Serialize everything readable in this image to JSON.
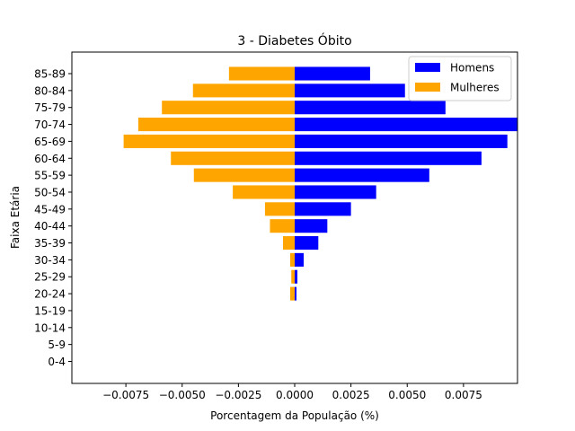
{
  "chart_data": {
    "type": "bar",
    "orientation": "horizontal",
    "title": "3 - Diabetes Óbito",
    "xlabel": "Porcentagem da População (%)",
    "ylabel": "Faixa Etária",
    "xlim": [
      -0.0099,
      0.0099
    ],
    "x_ticks": [
      -0.0075,
      -0.005,
      -0.0025,
      0.0,
      0.0025,
      0.005,
      0.0075
    ],
    "x_tick_labels": [
      "−0.0075",
      "−0.0050",
      "−0.0025",
      "0.0000",
      "0.0025",
      "0.0050",
      "0.0075"
    ],
    "categories": [
      "0-4",
      "5-9",
      "10-14",
      "15-19",
      "20-24",
      "25-29",
      "30-34",
      "35-39",
      "40-44",
      "45-49",
      "50-54",
      "55-59",
      "60-64",
      "65-69",
      "70-74",
      "75-79",
      "80-84",
      "85-89"
    ],
    "series": [
      {
        "name": "Homens",
        "color": "#0000ff",
        "values": [
          0.0,
          0.0,
          0.0,
          0.0,
          8e-05,
          0.00012,
          0.0004,
          0.00105,
          0.00145,
          0.0025,
          0.00362,
          0.00598,
          0.0083,
          0.00945,
          0.0099,
          0.0067,
          0.0049,
          0.00335
        ]
      },
      {
        "name": "Mulheres",
        "color": "#ffa500",
        "values": [
          0.0,
          0.0,
          0.0,
          0.0,
          -0.0002,
          -0.00015,
          -0.0002,
          -0.00052,
          -0.0011,
          -0.00132,
          -0.00275,
          -0.00448,
          -0.0055,
          -0.0076,
          -0.00695,
          -0.0059,
          -0.00452,
          -0.00292
        ]
      }
    ],
    "legend": {
      "placement": "top-right"
    },
    "grid": false
  }
}
